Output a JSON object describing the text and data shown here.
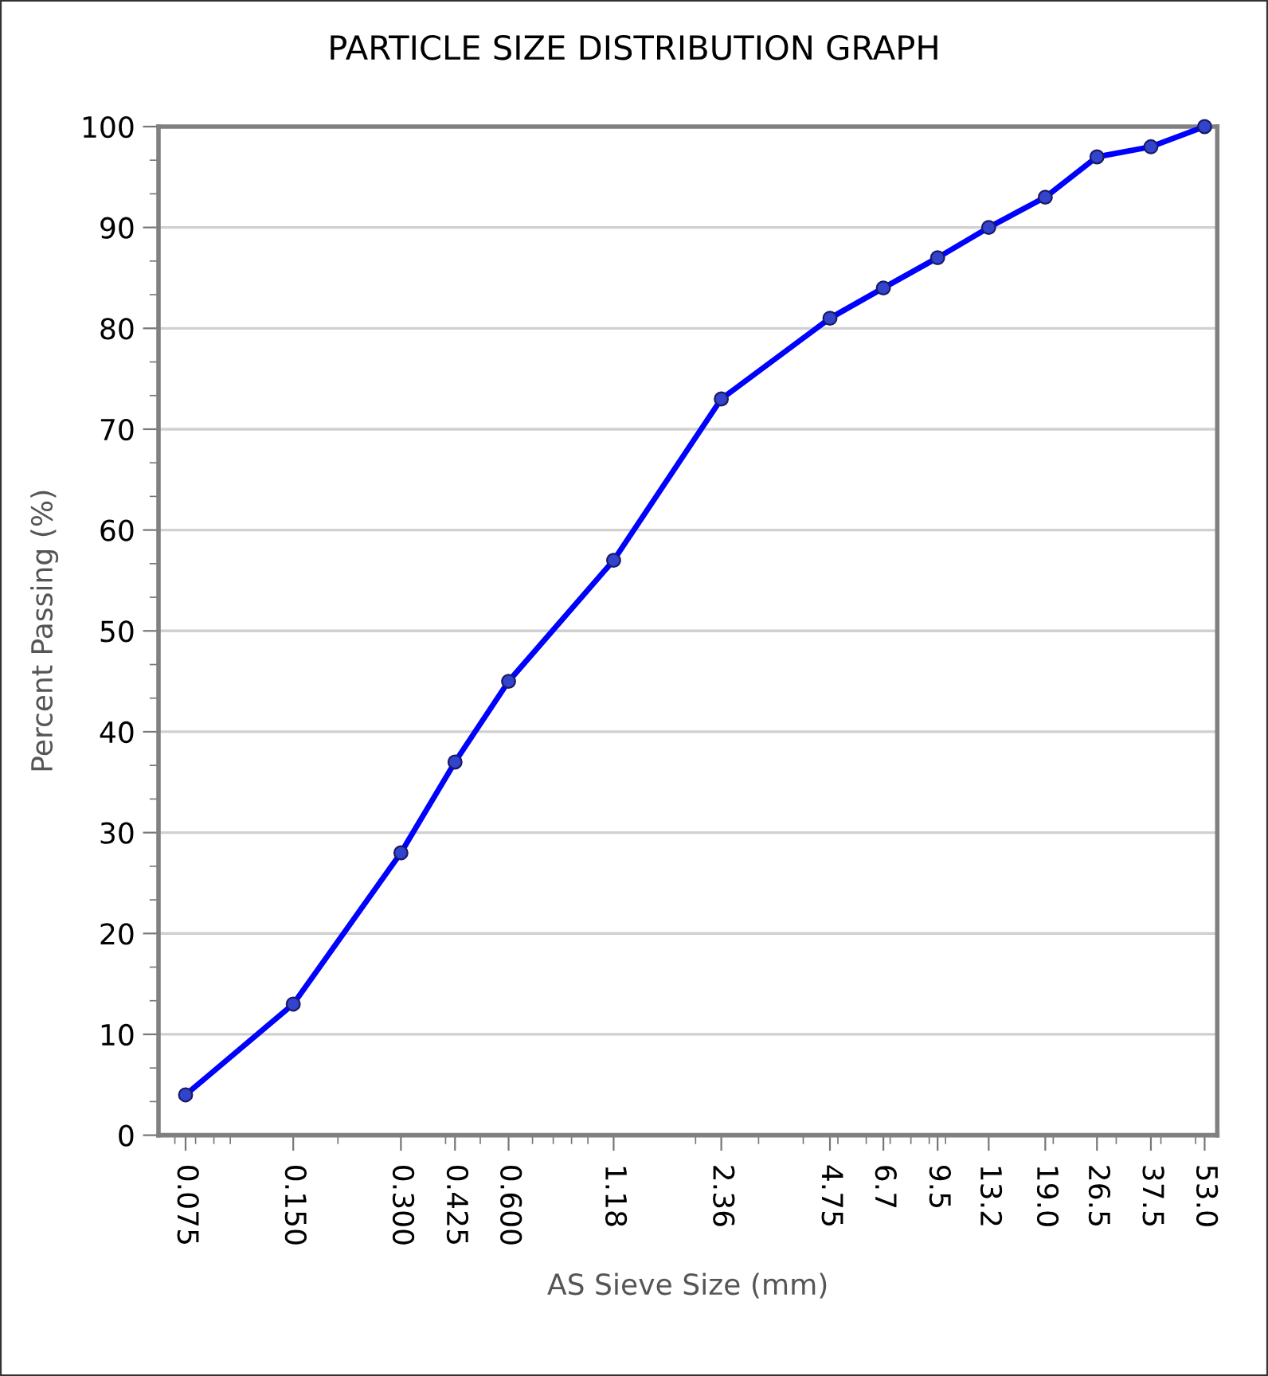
{
  "chart_data": {
    "type": "line",
    "title": "PARTICLE SIZE DISTRIBUTION GRAPH",
    "xlabel": "AS Sieve Size (mm)",
    "ylabel": "Percent Passing (%)",
    "log": "x",
    "grid": "y",
    "marker": "circle",
    "line_style": "solid",
    "x": [
      0.075,
      0.15,
      0.3,
      0.425,
      0.6,
      1.18,
      2.36,
      4.75,
      6.7,
      9.5,
      13.2,
      19.0,
      26.5,
      37.5,
      53.0
    ],
    "series": [
      {
        "color": "#0000ff",
        "values": [
          4,
          13,
          28,
          37,
          45,
          57,
          73,
          81,
          84,
          87,
          90,
          93,
          97,
          98,
          100
        ]
      }
    ],
    "xlim": [
      0.063,
      57.5
    ],
    "ylim": [
      0,
      100
    ],
    "xticks": [
      {
        "value": 0.075,
        "label": "0.075"
      },
      {
        "value": 0.15,
        "label": "0.150"
      },
      {
        "value": 0.3,
        "label": "0.300"
      },
      {
        "value": 0.425,
        "label": "0.425"
      },
      {
        "value": 0.6,
        "label": "0.600"
      },
      {
        "value": 1.18,
        "label": "1.18"
      },
      {
        "value": 2.36,
        "label": "2.36"
      },
      {
        "value": 4.75,
        "label": "4.75"
      },
      {
        "value": 6.7,
        "label": "6.7"
      },
      {
        "value": 9.5,
        "label": "9.5"
      },
      {
        "value": 13.2,
        "label": "13.2"
      },
      {
        "value": 19.0,
        "label": "19.0"
      },
      {
        "value": 26.5,
        "label": "26.5"
      },
      {
        "value": 37.5,
        "label": "37.5"
      },
      {
        "value": 53.0,
        "label": "53.0"
      }
    ],
    "yticks": [
      0,
      10,
      20,
      30,
      40,
      50,
      60,
      70,
      80,
      90,
      100
    ]
  }
}
